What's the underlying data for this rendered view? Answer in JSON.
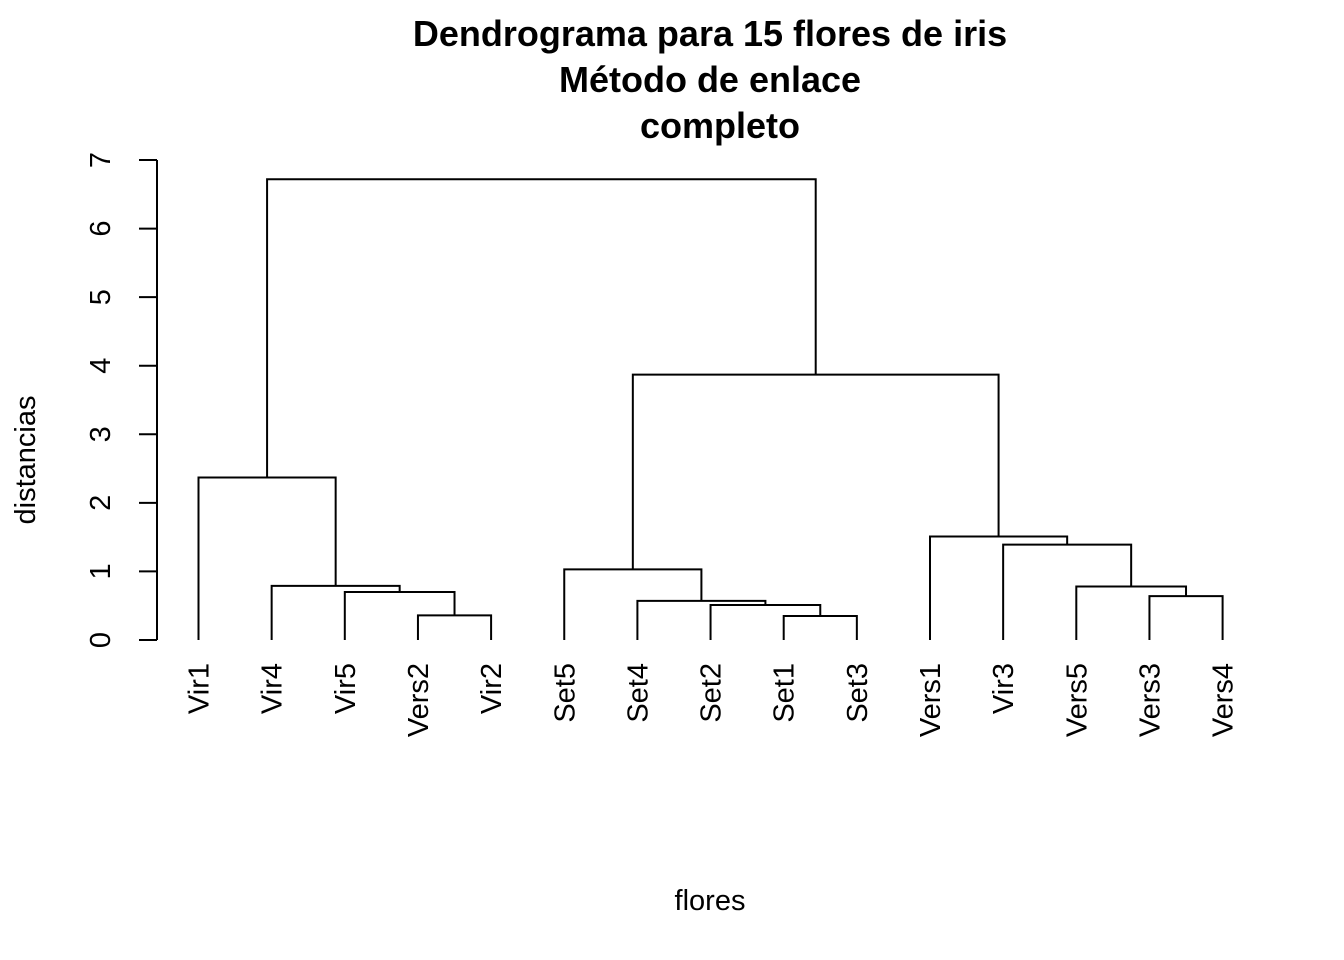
{
  "chart_data": {
    "type": "dendrogram",
    "title_lines": [
      "Dendrograma para 15 flores de iris",
      "Método de enlace",
      "completo"
    ],
    "xlabel": "flores",
    "ylabel": "distancias",
    "ylim": [
      0,
      7
    ],
    "yticks": [
      "0",
      "1",
      "2",
      "3",
      "4",
      "5",
      "6",
      "7"
    ],
    "leaves": [
      "Vir1",
      "Vir4",
      "Vir5",
      "Vers2",
      "Vir2",
      "Set5",
      "Set4",
      "Set2",
      "Set1",
      "Set3",
      "Vers1",
      "Vir3",
      "Vers5",
      "Vers3",
      "Vers4"
    ],
    "merges": [
      {
        "id": "c1",
        "left": "Vers2",
        "right": "Vir2",
        "height": 0.36
      },
      {
        "id": "c2",
        "left": "Vir5",
        "right": "c1",
        "height": 0.7
      },
      {
        "id": "c3",
        "left": "Vir4",
        "right": "c2",
        "height": 0.79
      },
      {
        "id": "c4",
        "left": "Vir1",
        "right": "c3",
        "height": 2.37
      },
      {
        "id": "c5",
        "left": "Set1",
        "right": "Set3",
        "height": 0.35
      },
      {
        "id": "c6",
        "left": "Set2",
        "right": "c5",
        "height": 0.51
      },
      {
        "id": "c7",
        "left": "Set4",
        "right": "c6",
        "height": 0.57
      },
      {
        "id": "c8",
        "left": "Set5",
        "right": "c7",
        "height": 1.03
      },
      {
        "id": "c9",
        "left": "Vers3",
        "right": "Vers4",
        "height": 0.64
      },
      {
        "id": "c10",
        "left": "Vers5",
        "right": "c9",
        "height": 0.78
      },
      {
        "id": "c11",
        "left": "Vir3",
        "right": "c10",
        "height": 1.39
      },
      {
        "id": "c12",
        "left": "Vers1",
        "right": "c11",
        "height": 1.51
      },
      {
        "id": "c13",
        "left": "c8",
        "right": "c12",
        "height": 3.87
      },
      {
        "id": "c14",
        "left": "c4",
        "right": "c13",
        "height": 6.72
      }
    ]
  }
}
